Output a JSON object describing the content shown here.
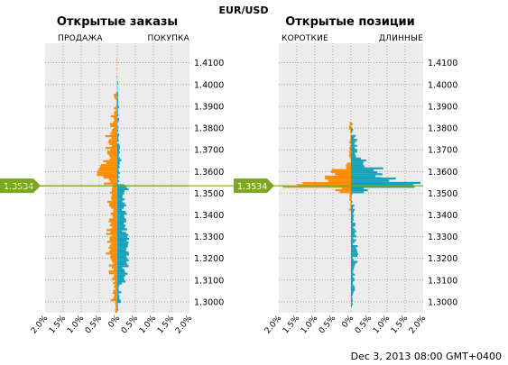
{
  "symbol": "EUR/USD",
  "timestamp": "Dec 3, 2013 08:00 GMT+0400",
  "current_price": "1.3534",
  "colors": {
    "short_sell": "#ff8c00",
    "long_buy": "#17a2b8",
    "price_line": "#7aa81e",
    "plot_bg": "#ececec",
    "grid": "#7a7a7a"
  },
  "chart_data": [
    {
      "type": "bar",
      "orientation": "horizontal",
      "title": "Открытые заказы",
      "left_label": "ПРОДАЖА",
      "right_label": "ПОКУПКА",
      "y_ticks": [
        "1.4100",
        "1.4000",
        "1.3900",
        "1.3800",
        "1.3700",
        "1.3600",
        "1.3500",
        "1.3400",
        "1.3300",
        "1.3200",
        "1.3100",
        "1.3000"
      ],
      "x_ticks": [
        "2.0%",
        "1.5%",
        "1.0%",
        "0.5%",
        "0%",
        "0.5%",
        "1.0%",
        "1.5%",
        "2.0%"
      ],
      "ylim": [
        1.295,
        1.419
      ],
      "xlim": [
        -2.0,
        2.0
      ],
      "current_price": 1.3534,
      "grid": true,
      "series": [
        {
          "name": "ПРОДАЖА",
          "color": "#ff8c00",
          "bands": [
            {
              "from": 1.295,
              "to": 1.2995,
              "min": 0.04,
              "max": 0.08
            },
            {
              "from": 1.2995,
              "to": 1.301,
              "min": 0.04,
              "max": 0.2
            },
            {
              "from": 1.301,
              "to": 1.31,
              "min": 0.05,
              "max": 0.15
            },
            {
              "from": 1.31,
              "to": 1.32,
              "min": 0.08,
              "max": 0.24
            },
            {
              "from": 1.32,
              "to": 1.333,
              "min": 0.15,
              "max": 0.32
            },
            {
              "from": 1.333,
              "to": 1.348,
              "min": 0.1,
              "max": 0.28
            },
            {
              "from": 1.348,
              "to": 1.354,
              "min": 0.1,
              "max": 0.22
            },
            {
              "from": 1.354,
              "to": 1.358,
              "min": 0.15,
              "max": 0.45
            },
            {
              "from": 1.358,
              "to": 1.365,
              "min": 0.3,
              "max": 0.58
            },
            {
              "from": 1.365,
              "to": 1.376,
              "min": 0.15,
              "max": 0.33
            },
            {
              "from": 1.376,
              "to": 1.385,
              "min": 0.08,
              "max": 0.22
            },
            {
              "from": 1.385,
              "to": 1.396,
              "min": 0.02,
              "max": 0.11
            },
            {
              "from": 1.396,
              "to": 1.412,
              "min": 0.0,
              "max": 0.03
            }
          ]
        },
        {
          "name": "ПОКУПКА",
          "color": "#17a2b8",
          "bands": [
            {
              "from": 1.295,
              "to": 1.2995,
              "min": 0.0,
              "max": 0.03
            },
            {
              "from": 1.2995,
              "to": 1.308,
              "min": 0.03,
              "max": 0.12
            },
            {
              "from": 1.308,
              "to": 1.316,
              "min": 0.12,
              "max": 0.3
            },
            {
              "from": 1.316,
              "to": 1.332,
              "min": 0.18,
              "max": 0.33
            },
            {
              "from": 1.332,
              "to": 1.344,
              "min": 0.12,
              "max": 0.28
            },
            {
              "from": 1.344,
              "to": 1.3505,
              "min": 0.12,
              "max": 0.25
            },
            {
              "from": 1.3505,
              "to": 1.3534,
              "min": 0.2,
              "max": 0.32
            },
            {
              "from": 1.3534,
              "to": 1.362,
              "min": 0.0,
              "max": 0.08
            },
            {
              "from": 1.362,
              "to": 1.372,
              "min": 0.03,
              "max": 0.12
            },
            {
              "from": 1.372,
              "to": 1.39,
              "min": 0.0,
              "max": 0.06
            },
            {
              "from": 1.39,
              "to": 1.401,
              "min": 0.0,
              "max": 0.03
            }
          ]
        }
      ]
    },
    {
      "type": "bar",
      "orientation": "horizontal",
      "title": "Открытые позиции",
      "left_label": "КОРОТКИЕ",
      "right_label": "ДЛИННЫЕ",
      "y_ticks": [
        "1.4100",
        "1.4000",
        "1.3900",
        "1.3800",
        "1.3700",
        "1.3600",
        "1.3500",
        "1.3400",
        "1.3300",
        "1.3200",
        "1.3100",
        "1.3000"
      ],
      "x_ticks": [
        "2.0%",
        "1.5%",
        "1.0%",
        "0.5%",
        "0%",
        "0.5%",
        "1.0%",
        "1.5%",
        "2.0%"
      ],
      "ylim": [
        1.295,
        1.419
      ],
      "xlim": [
        -2.0,
        2.0
      ],
      "current_price": 1.3534,
      "grid": true,
      "series": [
        {
          "name": "КОРОТКИЕ",
          "color": "#ff8c00",
          "bands": [
            {
              "from": 1.342,
              "to": 1.35,
              "min": 0.0,
              "max": 0.05
            },
            {
              "from": 1.35,
              "to": 1.3525,
              "min": 0.2,
              "max": 0.6
            },
            {
              "from": 1.3525,
              "to": 1.3533,
              "min": 1.6,
              "max": 2.0
            },
            {
              "from": 1.3533,
              "to": 1.3545,
              "min": 1.1,
              "max": 1.5
            },
            {
              "from": 1.3545,
              "to": 1.3575,
              "min": 0.5,
              "max": 0.9
            },
            {
              "from": 1.3575,
              "to": 1.3605,
              "min": 0.35,
              "max": 0.6
            },
            {
              "from": 1.3605,
              "to": 1.364,
              "min": 0.05,
              "max": 0.2
            },
            {
              "from": 1.364,
              "to": 1.382,
              "min": 0.0,
              "max": 0.06
            }
          ]
        },
        {
          "name": "ДЛИННЫЕ",
          "color": "#17a2b8",
          "bands": [
            {
              "from": 1.2975,
              "to": 1.304,
              "min": 0.02,
              "max": 0.08
            },
            {
              "from": 1.304,
              "to": 1.318,
              "min": 0.05,
              "max": 0.14
            },
            {
              "from": 1.318,
              "to": 1.332,
              "min": 0.05,
              "max": 0.2
            },
            {
              "from": 1.332,
              "to": 1.342,
              "min": 0.05,
              "max": 0.15
            },
            {
              "from": 1.342,
              "to": 1.35,
              "min": 0.0,
              "max": 0.1
            },
            {
              "from": 1.35,
              "to": 1.3525,
              "min": 0.3,
              "max": 0.8
            },
            {
              "from": 1.3525,
              "to": 1.3545,
              "min": 1.6,
              "max": 2.0
            },
            {
              "from": 1.3545,
              "to": 1.3565,
              "min": 0.8,
              "max": 1.3
            },
            {
              "from": 1.3565,
              "to": 1.361,
              "min": 0.5,
              "max": 1.0
            },
            {
              "from": 1.361,
              "to": 1.366,
              "min": 0.25,
              "max": 0.45
            },
            {
              "from": 1.366,
              "to": 1.376,
              "min": 0.08,
              "max": 0.2
            },
            {
              "from": 1.376,
              "to": 1.382,
              "min": 0.0,
              "max": 0.08
            }
          ]
        }
      ]
    }
  ]
}
